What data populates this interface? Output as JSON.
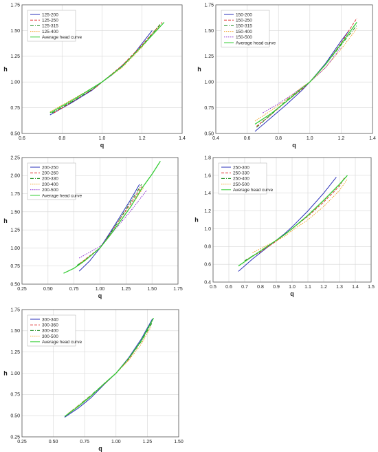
{
  "chart_data": [
    {
      "type": "line",
      "xlabel": "q",
      "ylabel": "h",
      "xlim": [
        0.6,
        1.4
      ],
      "ylim": [
        0.5,
        1.75
      ],
      "xticks": [
        "0.6",
        "0.8",
        "1.0",
        "1.2",
        "1.4"
      ],
      "yticks": [
        "0.50",
        "0.75",
        "1.00",
        "1.25",
        "1.50",
        "1.75"
      ],
      "grid": true,
      "legend_position": "top-left",
      "series": [
        {
          "name": "125-200",
          "color": "#2a2fb8",
          "dash": "solid",
          "x": [
            0.74,
            0.85,
            0.95,
            1.0,
            1.05,
            1.15,
            1.25
          ],
          "y": [
            0.68,
            0.8,
            0.92,
            1.0,
            1.07,
            1.25,
            1.5
          ]
        },
        {
          "name": "125-250",
          "color": "#e03030",
          "dash": "dashed",
          "x": [
            0.76,
            0.87,
            0.97,
            1.0,
            1.1,
            1.2,
            1.3
          ],
          "y": [
            0.7,
            0.83,
            0.95,
            1.0,
            1.16,
            1.36,
            1.58
          ]
        },
        {
          "name": "125-315",
          "color": "#1a8a1a",
          "dash": "dashdot",
          "x": [
            0.75,
            0.86,
            0.96,
            1.0,
            1.1,
            1.2,
            1.29
          ],
          "y": [
            0.7,
            0.82,
            0.94,
            1.0,
            1.15,
            1.35,
            1.56
          ]
        },
        {
          "name": "125-400",
          "color": "#f0a020",
          "dash": "dotted",
          "x": [
            0.74,
            0.85,
            0.95,
            1.0,
            1.1,
            1.2,
            1.29
          ],
          "y": [
            0.71,
            0.83,
            0.94,
            1.0,
            1.14,
            1.34,
            1.55
          ]
        },
        {
          "name": "Average head curve",
          "color": "#33cc33",
          "dash": "solid",
          "x": [
            0.74,
            0.85,
            0.95,
            1.0,
            1.1,
            1.2,
            1.31
          ],
          "y": [
            0.7,
            0.82,
            0.94,
            1.0,
            1.15,
            1.35,
            1.58
          ]
        }
      ]
    },
    {
      "type": "line",
      "xlabel": "q",
      "ylabel": "h",
      "xlim": [
        0.4,
        1.4
      ],
      "ylim": [
        0.5,
        1.75
      ],
      "xticks": [
        "0.4",
        "0.6",
        "0.8",
        "1.0",
        "1.2",
        "1.4"
      ],
      "yticks": [
        "0.50",
        "0.75",
        "1.00",
        "1.25",
        "1.50",
        "1.75"
      ],
      "grid": true,
      "legend_position": "top-left",
      "series": [
        {
          "name": "150-200",
          "color": "#2a2fb8",
          "dash": "solid",
          "x": [
            0.65,
            0.75,
            0.85,
            0.95,
            1.0,
            1.1,
            1.2,
            1.25
          ],
          "y": [
            0.52,
            0.65,
            0.78,
            0.92,
            1.0,
            1.18,
            1.4,
            1.5
          ]
        },
        {
          "name": "150-250",
          "color": "#e03030",
          "dash": "dashed",
          "x": [
            0.66,
            0.75,
            0.85,
            0.95,
            1.0,
            1.1,
            1.2,
            1.3
          ],
          "y": [
            0.57,
            0.68,
            0.81,
            0.93,
            1.0,
            1.17,
            1.38,
            1.62
          ]
        },
        {
          "name": "150-315",
          "color": "#1a8a1a",
          "dash": "dashdot",
          "x": [
            0.66,
            0.75,
            0.85,
            0.95,
            1.0,
            1.1,
            1.2,
            1.3
          ],
          "y": [
            0.56,
            0.68,
            0.82,
            0.94,
            1.0,
            1.17,
            1.36,
            1.55
          ]
        },
        {
          "name": "150-400",
          "color": "#f0a020",
          "dash": "dotted",
          "x": [
            0.65,
            0.75,
            0.85,
            0.95,
            1.0,
            1.1,
            1.2,
            1.3
          ],
          "y": [
            0.62,
            0.72,
            0.83,
            0.95,
            1.0,
            1.14,
            1.32,
            1.52
          ]
        },
        {
          "name": "150-500",
          "color": "#8a2ad0",
          "dash": "dotted",
          "x": [
            0.7,
            0.8,
            0.9,
            1.0,
            1.1,
            1.2
          ],
          "y": [
            0.7,
            0.79,
            0.89,
            1.0,
            1.14,
            1.34
          ]
        },
        {
          "name": "Average head curve",
          "color": "#33cc33",
          "dash": "solid",
          "x": [
            0.65,
            0.75,
            0.85,
            0.95,
            1.0,
            1.1,
            1.2,
            1.3
          ],
          "y": [
            0.59,
            0.69,
            0.81,
            0.94,
            1.0,
            1.17,
            1.37,
            1.58
          ]
        }
      ]
    },
    {
      "type": "line",
      "xlabel": "q",
      "ylabel": "h",
      "xlim": [
        0.25,
        1.75
      ],
      "ylim": [
        0.5,
        2.25
      ],
      "xticks": [
        "0.25",
        "0.50",
        "0.75",
        "1.00",
        "1.25",
        "1.50",
        "1.75"
      ],
      "yticks": [
        "0.50",
        "0.75",
        "1.00",
        "1.25",
        "1.50",
        "1.75",
        "2.00",
        "2.25"
      ],
      "grid": true,
      "legend_position": "top-left",
      "series": [
        {
          "name": "200-250",
          "color": "#2a2fb8",
          "dash": "solid",
          "x": [
            0.8,
            0.9,
            1.0,
            1.1,
            1.2,
            1.3,
            1.38
          ],
          "y": [
            0.68,
            0.82,
            1.0,
            1.22,
            1.45,
            1.68,
            1.88
          ]
        },
        {
          "name": "200-260",
          "color": "#e03030",
          "dash": "dashed",
          "x": [
            0.8,
            0.9,
            1.0,
            1.1,
            1.2,
            1.3,
            1.4
          ],
          "y": [
            0.78,
            0.89,
            1.0,
            1.2,
            1.42,
            1.62,
            1.85
          ]
        },
        {
          "name": "200-330",
          "color": "#1a8a1a",
          "dash": "dashdot",
          "x": [
            0.78,
            0.9,
            1.0,
            1.1,
            1.2,
            1.3,
            1.4
          ],
          "y": [
            0.76,
            0.88,
            1.0,
            1.2,
            1.42,
            1.65,
            1.88
          ]
        },
        {
          "name": "200-400",
          "color": "#f0a020",
          "dash": "dotted",
          "x": [
            0.82,
            0.9,
            1.0,
            1.1,
            1.2,
            1.3,
            1.42
          ],
          "y": [
            0.8,
            0.88,
            1.0,
            1.18,
            1.38,
            1.58,
            1.84
          ]
        },
        {
          "name": "200-500",
          "color": "#8a2ad0",
          "dash": "dotted",
          "x": [
            0.8,
            0.9,
            1.0,
            1.1,
            1.2,
            1.3,
            1.45
          ],
          "y": [
            0.86,
            0.94,
            1.02,
            1.18,
            1.35,
            1.52,
            1.8
          ]
        },
        {
          "name": "Average head curve",
          "color": "#33cc33",
          "dash": "solid",
          "x": [
            0.65,
            0.75,
            0.85,
            0.95,
            1.0,
            1.1,
            1.2,
            1.3,
            1.4,
            1.5,
            1.58
          ],
          "y": [
            0.65,
            0.72,
            0.82,
            0.94,
            1.0,
            1.18,
            1.38,
            1.58,
            1.82,
            2.02,
            2.2
          ]
        }
      ]
    },
    {
      "type": "line",
      "xlabel": "q",
      "ylabel": "h",
      "xlim": [
        0.5,
        1.5
      ],
      "ylim": [
        0.4,
        1.8
      ],
      "xticks": [
        "0.5",
        "0.6",
        "0.7",
        "0.8",
        "0.9",
        "1.0",
        "1.1",
        "1.2",
        "1.3",
        "1.4",
        "1.5"
      ],
      "yticks": [
        "0.4",
        "0.6",
        "0.8",
        "1.0",
        "1.2",
        "1.4",
        "1.6",
        "1.8"
      ],
      "grid": true,
      "legend_position": "top-left",
      "series": [
        {
          "name": "250-300",
          "color": "#2a2fb8",
          "dash": "solid",
          "x": [
            0.66,
            0.75,
            0.85,
            0.95,
            1.0,
            1.1,
            1.2,
            1.28
          ],
          "y": [
            0.52,
            0.66,
            0.8,
            0.94,
            1.02,
            1.2,
            1.4,
            1.58
          ]
        },
        {
          "name": "250-330",
          "color": "#e03030",
          "dash": "dashed",
          "x": [
            0.7,
            0.8,
            0.9,
            1.0,
            1.1,
            1.2,
            1.3,
            1.33
          ],
          "y": [
            0.64,
            0.74,
            0.86,
            1.0,
            1.14,
            1.3,
            1.48,
            1.57
          ]
        },
        {
          "name": "250-400",
          "color": "#1a8a1a",
          "dash": "dashdot",
          "x": [
            0.7,
            0.8,
            0.9,
            1.0,
            1.1,
            1.2,
            1.3,
            1.34
          ],
          "y": [
            0.64,
            0.75,
            0.87,
            1.0,
            1.15,
            1.32,
            1.5,
            1.58
          ]
        },
        {
          "name": "250-500",
          "color": "#f0a020",
          "dash": "dotted",
          "x": [
            0.75,
            0.85,
            0.95,
            1.0,
            1.1,
            1.2,
            1.3,
            1.35
          ],
          "y": [
            0.73,
            0.82,
            0.91,
            0.98,
            1.1,
            1.25,
            1.43,
            1.56
          ]
        },
        {
          "name": "Average head curve",
          "color": "#33cc33",
          "dash": "solid",
          "x": [
            0.66,
            0.75,
            0.85,
            0.95,
            1.0,
            1.1,
            1.2,
            1.3,
            1.35
          ],
          "y": [
            0.58,
            0.69,
            0.81,
            0.93,
            1.0,
            1.15,
            1.32,
            1.5,
            1.6
          ]
        }
      ]
    },
    {
      "type": "line",
      "xlabel": "q",
      "ylabel": "h",
      "xlim": [
        0.25,
        1.5
      ],
      "ylim": [
        0.25,
        1.75
      ],
      "xticks": [
        "0.25",
        "0.50",
        "0.75",
        "1.00",
        "1.25",
        "1.50"
      ],
      "yticks": [
        "0.25",
        "0.50",
        "0.75",
        "1.00",
        "1.25",
        "1.50",
        "1.75"
      ],
      "grid": true,
      "legend_position": "top-left",
      "series": [
        {
          "name": "300-340",
          "color": "#2a2fb8",
          "dash": "solid",
          "x": [
            0.59,
            0.7,
            0.8,
            0.9,
            1.0,
            1.1,
            1.2,
            1.29
          ],
          "y": [
            0.48,
            0.59,
            0.71,
            0.86,
            1.0,
            1.18,
            1.4,
            1.64
          ]
        },
        {
          "name": "300-360",
          "color": "#e03030",
          "dash": "dashed",
          "x": [
            0.6,
            0.7,
            0.8,
            0.9,
            1.0,
            1.1,
            1.2,
            1.29
          ],
          "y": [
            0.5,
            0.61,
            0.73,
            0.87,
            1.0,
            1.16,
            1.38,
            1.62
          ]
        },
        {
          "name": "300-400",
          "color": "#1a8a1a",
          "dash": "dashdot",
          "x": [
            0.6,
            0.7,
            0.8,
            0.9,
            1.0,
            1.1,
            1.2,
            1.29
          ],
          "y": [
            0.5,
            0.62,
            0.74,
            0.87,
            1.0,
            1.17,
            1.37,
            1.6
          ]
        },
        {
          "name": "300-500",
          "color": "#f0a020",
          "dash": "dotted",
          "x": [
            0.62,
            0.72,
            0.82,
            0.92,
            1.0,
            1.1,
            1.2,
            1.28
          ],
          "y": [
            0.53,
            0.64,
            0.76,
            0.89,
            1.0,
            1.15,
            1.34,
            1.55
          ]
        },
        {
          "name": "Average head curve",
          "color": "#33cc33",
          "dash": "solid",
          "x": [
            0.59,
            0.7,
            0.8,
            0.9,
            1.0,
            1.1,
            1.2,
            1.3
          ],
          "y": [
            0.49,
            0.61,
            0.73,
            0.87,
            1.0,
            1.17,
            1.38,
            1.65
          ]
        }
      ]
    }
  ]
}
